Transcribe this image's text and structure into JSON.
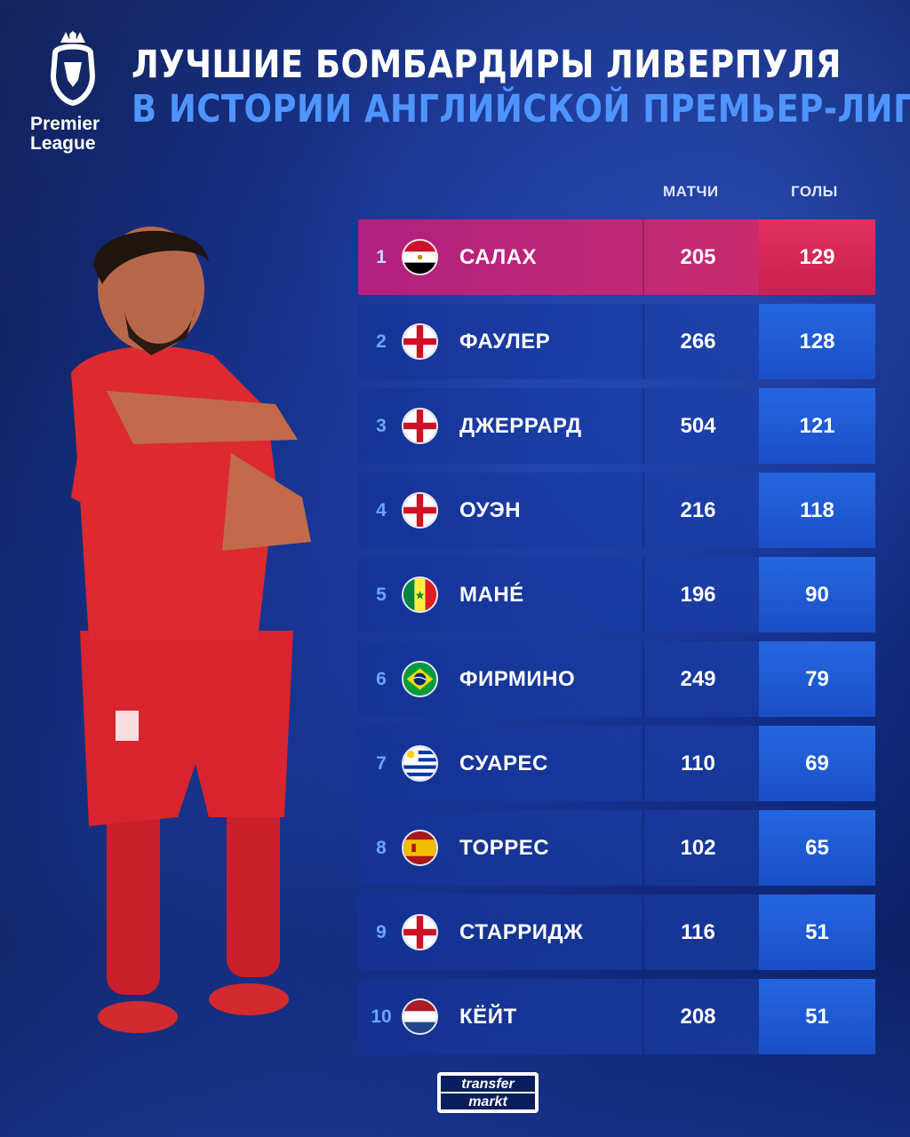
{
  "header": {
    "title_line1": "ЛУЧШИЕ БОМБАРДИРЫ ЛИВЕРПУЛЯ",
    "title_line2": "В ИСТОРИИ АНГЛИЙСКОЙ ПРЕМЬЕР-ЛИГИ",
    "logo_line1": "Premier",
    "logo_line2": "League"
  },
  "columns": {
    "matches": "МАТЧИ",
    "goals": "ГОЛЫ"
  },
  "players": [
    {
      "rank": "1",
      "flag": "egypt-flag-icon",
      "name": "САЛАХ",
      "matches": "205",
      "goals": "129"
    },
    {
      "rank": "2",
      "flag": "england-flag-icon",
      "name": "ФАУЛЕР",
      "matches": "266",
      "goals": "128"
    },
    {
      "rank": "3",
      "flag": "england-flag-icon",
      "name": "ДЖЕРРАРД",
      "matches": "504",
      "goals": "121"
    },
    {
      "rank": "4",
      "flag": "england-flag-icon",
      "name": "ОУЭН",
      "matches": "216",
      "goals": "118"
    },
    {
      "rank": "5",
      "flag": "senegal-flag-icon",
      "name": "МАНÉ",
      "matches": "196",
      "goals": "90"
    },
    {
      "rank": "6",
      "flag": "brazil-flag-icon",
      "name": "ФИРМИНО",
      "matches": "249",
      "goals": "79"
    },
    {
      "rank": "7",
      "flag": "uruguay-flag-icon",
      "name": "СУАРЕС",
      "matches": "110",
      "goals": "69"
    },
    {
      "rank": "8",
      "flag": "spain-flag-icon",
      "name": "ТОРРЕС",
      "matches": "102",
      "goals": "65"
    },
    {
      "rank": "9",
      "flag": "england-flag-icon",
      "name": "СТАРРИДЖ",
      "matches": "116",
      "goals": "51"
    },
    {
      "rank": "10",
      "flag": "netherlands-flag-icon",
      "name": "КЁЙТ",
      "matches": "208",
      "goals": "51"
    }
  ],
  "footer": {
    "brand_line1": "transfer",
    "brand_line2": "markt"
  },
  "colors": {
    "accent_blue": "#4f95ff",
    "highlight_row": "#c22a74",
    "goals_cell": "#2566e0",
    "jersey_red": "#d8242e"
  }
}
